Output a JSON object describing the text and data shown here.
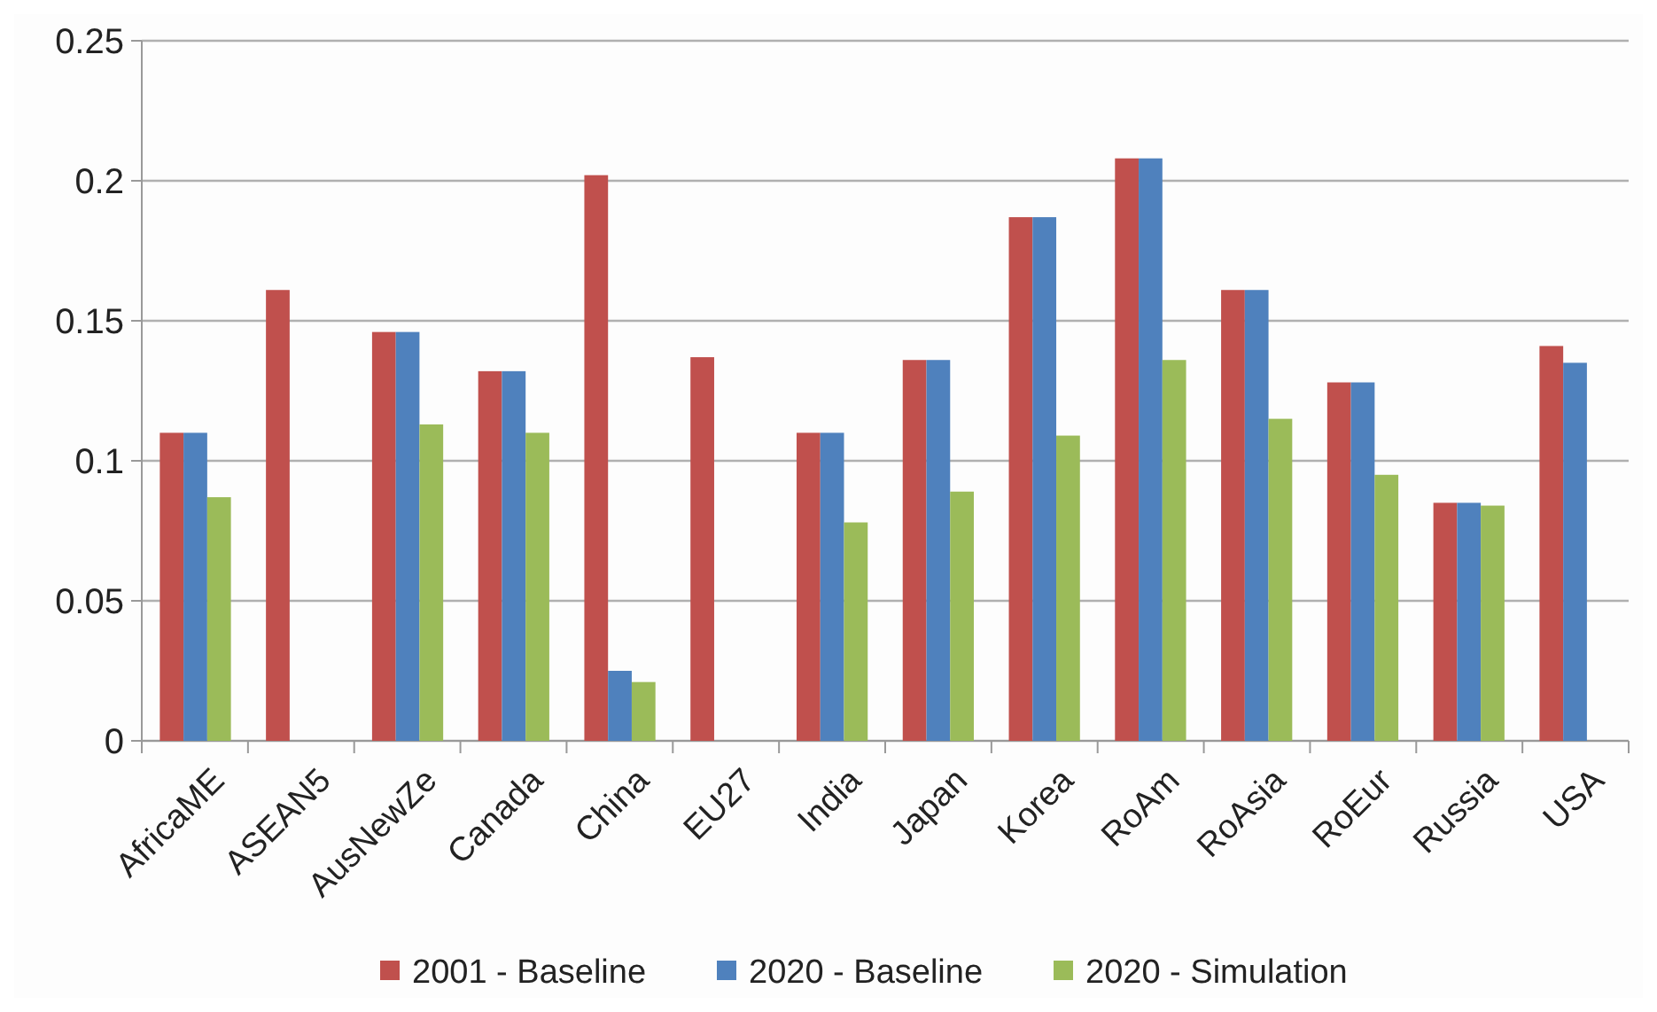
{
  "chart_data": {
    "type": "bar",
    "categories": [
      "AfricaME",
      "ASEAN5",
      "AusNewZe",
      "Canada",
      "China",
      "EU27",
      "India",
      "Japan",
      "Korea",
      "RoAm",
      "RoAsia",
      "RoEur",
      "Russia",
      "USA"
    ],
    "series": [
      {
        "name": "2001 - Baseline",
        "color": "#c0504d",
        "values": [
          0.11,
          0.161,
          0.146,
          0.132,
          0.202,
          0.137,
          0.11,
          0.136,
          0.187,
          0.208,
          0.161,
          0.128,
          0.085,
          0.141
        ]
      },
      {
        "name": "2020 - Baseline",
        "color": "#4f81bd",
        "values": [
          0.11,
          null,
          0.146,
          0.132,
          0.025,
          null,
          0.11,
          0.136,
          0.187,
          0.208,
          0.161,
          0.128,
          0.085,
          0.135
        ]
      },
      {
        "name": "2020 - Simulation",
        "color": "#9bbb59",
        "values": [
          0.087,
          null,
          0.113,
          0.11,
          0.021,
          null,
          0.078,
          0.089,
          0.109,
          0.136,
          0.115,
          0.095,
          0.084,
          null
        ]
      }
    ],
    "ylim": [
      0,
      0.25
    ],
    "yticks": [
      0,
      0.05,
      0.1,
      0.15,
      0.2,
      0.25
    ],
    "grid": "y",
    "legend": "bottom"
  }
}
